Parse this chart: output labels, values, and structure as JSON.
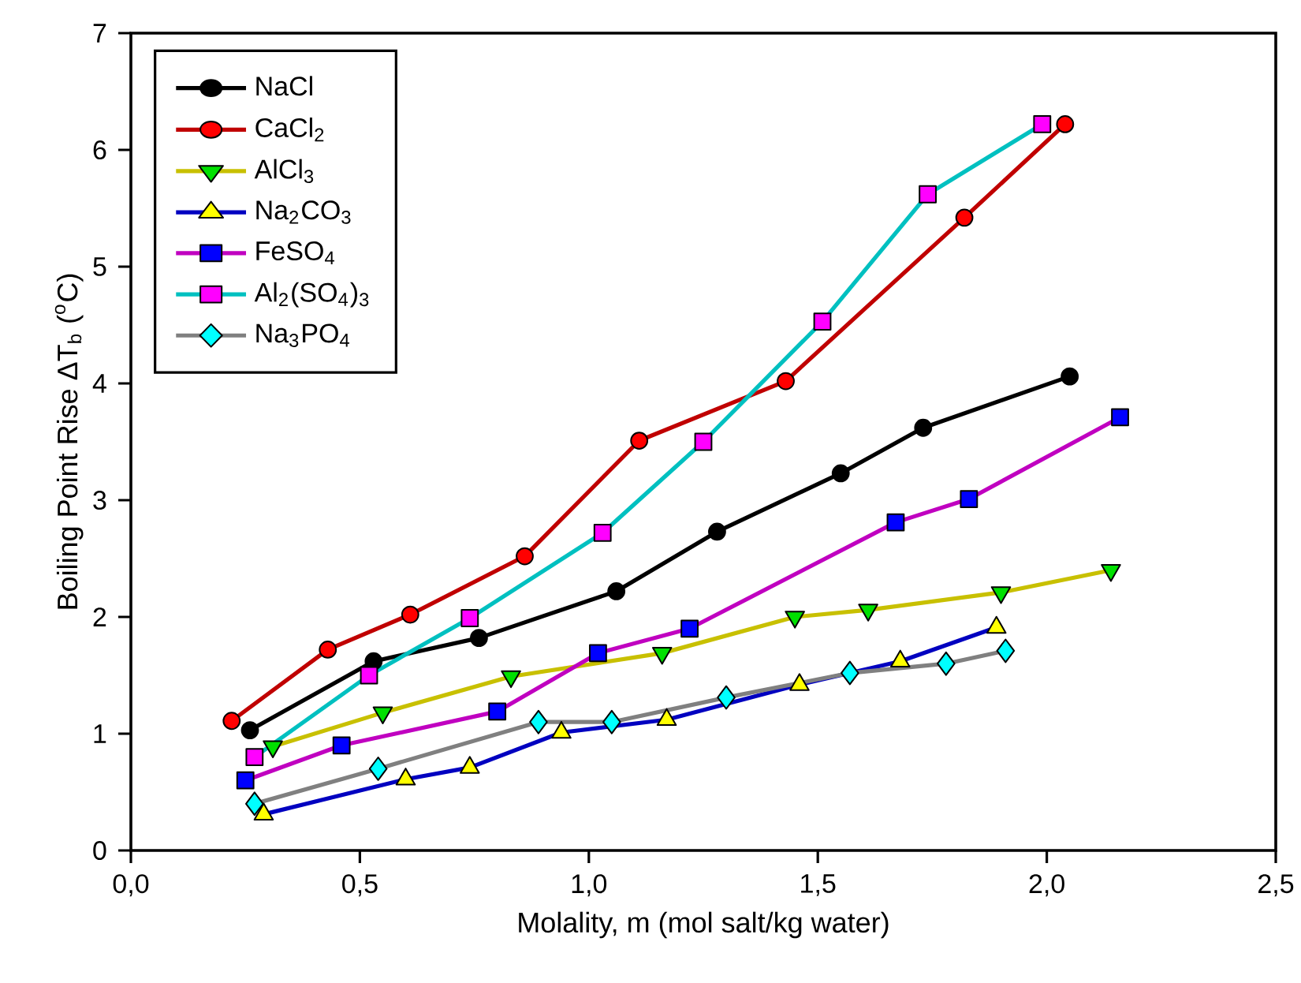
{
  "chart_data": {
    "type": "line",
    "xlabel": "Molality, m (mol salt/kg water)",
    "ylabel": "Boiling Point Rise ΔT$_{b}$ ($^{o}$C)",
    "xlim": [
      0,
      2.5
    ],
    "ylim": [
      0,
      7
    ],
    "xticks": [
      {
        "value": 0,
        "label": "0,0"
      },
      {
        "value": 0.5,
        "label": "0,5"
      },
      {
        "value": 1,
        "label": "1,0"
      },
      {
        "value": 1.5,
        "label": "1,5"
      },
      {
        "value": 2,
        "label": "2,0"
      },
      {
        "value": 2.5,
        "label": "2,5"
      }
    ],
    "yticks": [
      0,
      1,
      2,
      3,
      4,
      5,
      6,
      7
    ],
    "grid": false,
    "legend": "top left",
    "line_style": "solid",
    "series": [
      {
        "name": "NaCl",
        "color": "#000000",
        "marker": "circle",
        "colors": [
          "#000000",
          "#000000",
          "#000000",
          "#000000",
          "#000000",
          "#000000",
          "#000000",
          "#000000"
        ],
        "x": [
          0.26,
          0.53,
          0.76,
          1.06,
          1.28,
          1.55,
          1.73,
          2.05
        ],
        "values": [
          1.03,
          1.62,
          1.82,
          2.22,
          2.73,
          3.23,
          3.62,
          4.06
        ]
      },
      {
        "name": "CaCl$_{2}$",
        "color": "#c00000",
        "marker": "circle",
        "colors": [
          "#ff0000",
          "#ff0000",
          "#ff0000",
          "#ff0000",
          "#ff0000",
          "#ff0000",
          "#ff0000",
          "#ff0000"
        ],
        "x": [
          0.22,
          0.43,
          0.61,
          0.86,
          1.11,
          1.43,
          1.82,
          2.04
        ],
        "values": [
          1.11,
          1.72,
          2.02,
          2.52,
          3.51,
          4.02,
          5.42,
          6.22
        ]
      },
      {
        "name": "AlCl$_{3}$",
        "color": "#c8c000",
        "marker": "triangle down",
        "colors": [
          "#00e000",
          "#00e000",
          "#00e000",
          "#00e000",
          "#00e000",
          "#00e000",
          "#00e000",
          "#00e000"
        ],
        "x": [
          0.31,
          0.55,
          0.83,
          1.16,
          1.45,
          1.61,
          1.9,
          2.14
        ],
        "values": [
          0.89,
          1.18,
          1.49,
          1.69,
          2.0,
          2.06,
          2.21,
          2.4
        ]
      },
      {
        "name": "Na$_{2}$CO$_{3}$",
        "color": "#0000c0",
        "marker": "triangle",
        "colors": [
          "#ffff00",
          "#ffff00",
          "#ffff00",
          "#ffff00",
          "#ffff00",
          "#ffff00",
          "#ffff00",
          "#ffff00"
        ],
        "x": [
          0.29,
          0.6,
          0.74,
          0.94,
          1.17,
          1.46,
          1.68,
          1.89
        ],
        "values": [
          0.31,
          0.61,
          0.71,
          1.01,
          1.12,
          1.42,
          1.62,
          1.91
        ]
      },
      {
        "name": "FeSO$_{4}$",
        "color": "#c000c0",
        "marker": "square",
        "colors": [
          "#0000ff",
          "#0000ff",
          "#0000ff",
          "#0000ff",
          "#0000ff",
          "#0000ff",
          "#0000ff",
          "#0000ff"
        ],
        "x": [
          0.25,
          0.46,
          0.8,
          1.02,
          1.22,
          1.67,
          1.83,
          2.16
        ],
        "values": [
          0.6,
          0.9,
          1.19,
          1.69,
          1.9,
          2.81,
          3.01,
          3.71
        ]
      },
      {
        "name": "Al$_{2}$(SO$_{4}$)$_{3}$",
        "color": "#00c0c0",
        "marker": "square",
        "colors": [
          "#ff00ff",
          "#ff00ff",
          "#ff00ff",
          "#ff00ff",
          "#ff00ff",
          "#ff00ff",
          "#ff00ff",
          "#ff00ff"
        ],
        "x": [
          0.27,
          0.52,
          0.74,
          1.03,
          1.25,
          1.51,
          1.74,
          1.99
        ],
        "values": [
          0.8,
          1.5,
          1.99,
          2.72,
          3.5,
          4.53,
          5.62,
          6.22
        ]
      },
      {
        "name": "Na$_{3}$PO$_{4}$",
        "color": "#808080",
        "marker": "diamond",
        "colors": [
          "#00ffff",
          "#00ffff",
          "#00ffff",
          "#00ffff",
          "#00ffff",
          "#00ffff",
          "#00ffff",
          "#00ffff"
        ],
        "x": [
          0.27,
          0.54,
          0.89,
          1.05,
          1.3,
          1.57,
          1.78,
          1.91
        ],
        "values": [
          0.4,
          0.7,
          1.1,
          1.1,
          1.31,
          1.52,
          1.6,
          1.71
        ]
      }
    ]
  }
}
